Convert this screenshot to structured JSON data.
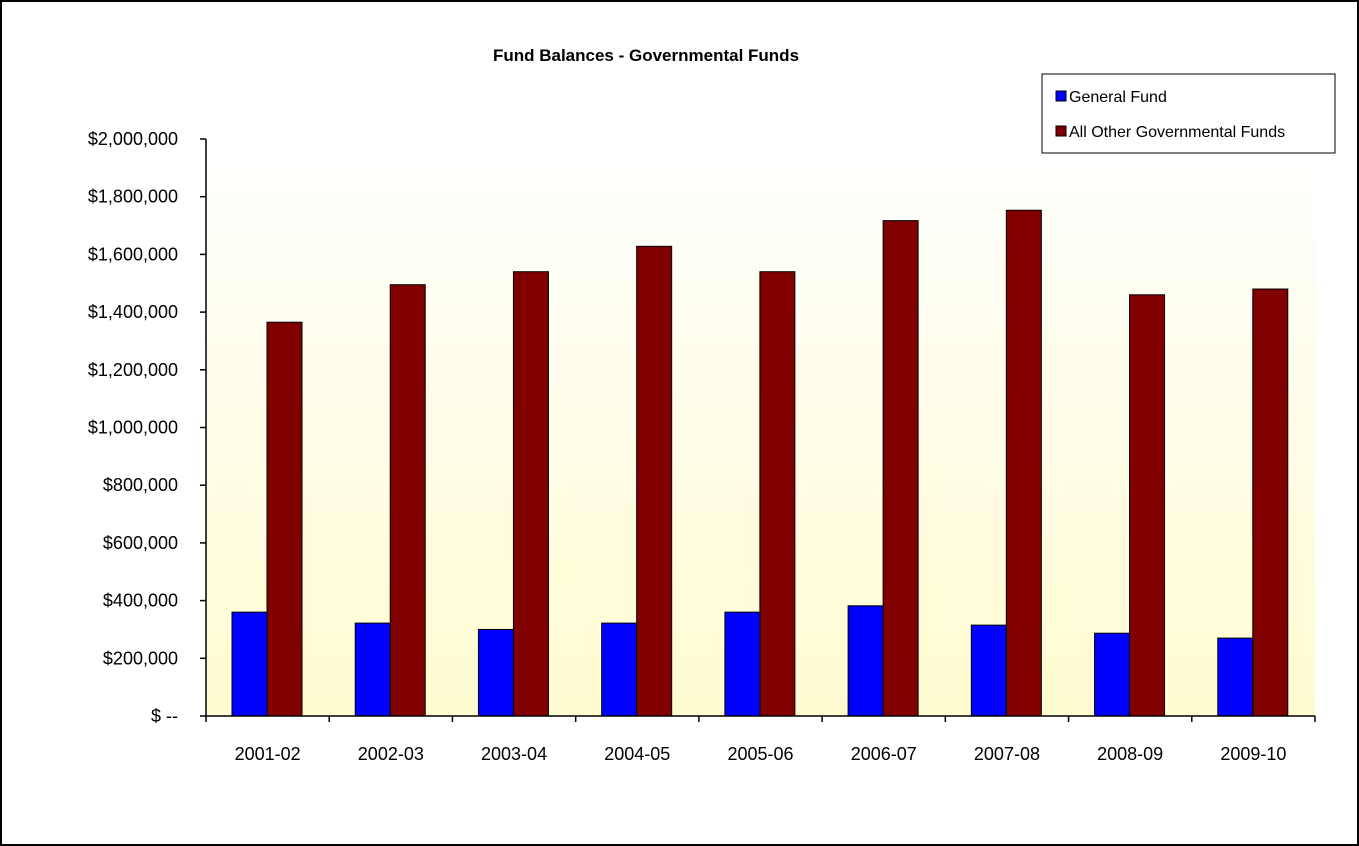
{
  "chart_data": {
    "type": "bar",
    "title": "Fund Balances - Governmental Funds",
    "xlabel": "",
    "ylabel": "",
    "categories": [
      "2001-02",
      "2002-03",
      "2003-04",
      "2004-05",
      "2005-06",
      "2006-07",
      "2007-08",
      "2008-09",
      "2009-10"
    ],
    "series": [
      {
        "name": "General Fund",
        "color": "#0000ff",
        "values": [
          360000,
          322000,
          300000,
          322000,
          360000,
          382000,
          315000,
          287000,
          270000
        ]
      },
      {
        "name": "All Other Governmental Funds",
        "color": "#800000",
        "values": [
          1365000,
          1495000,
          1540000,
          1628000,
          1540000,
          1717000,
          1753000,
          1460000,
          1480000
        ]
      }
    ],
    "ylim": [
      0,
      2000000
    ],
    "yticks": [
      0,
      200000,
      400000,
      600000,
      800000,
      1000000,
      1200000,
      1400000,
      1600000,
      1800000,
      2000000
    ],
    "ytick_labels": [
      "$ --",
      "$200,000",
      "$400,000",
      "$600,000",
      "$800,000",
      "$1,000,000",
      "$1,200,000",
      "$1,400,000",
      "$1,600,000",
      "$1,800,000",
      "$2,000,000"
    ],
    "grid": false,
    "legend_position": "top-right",
    "plot_background": [
      "#ffffff",
      "#fffbd0"
    ]
  }
}
